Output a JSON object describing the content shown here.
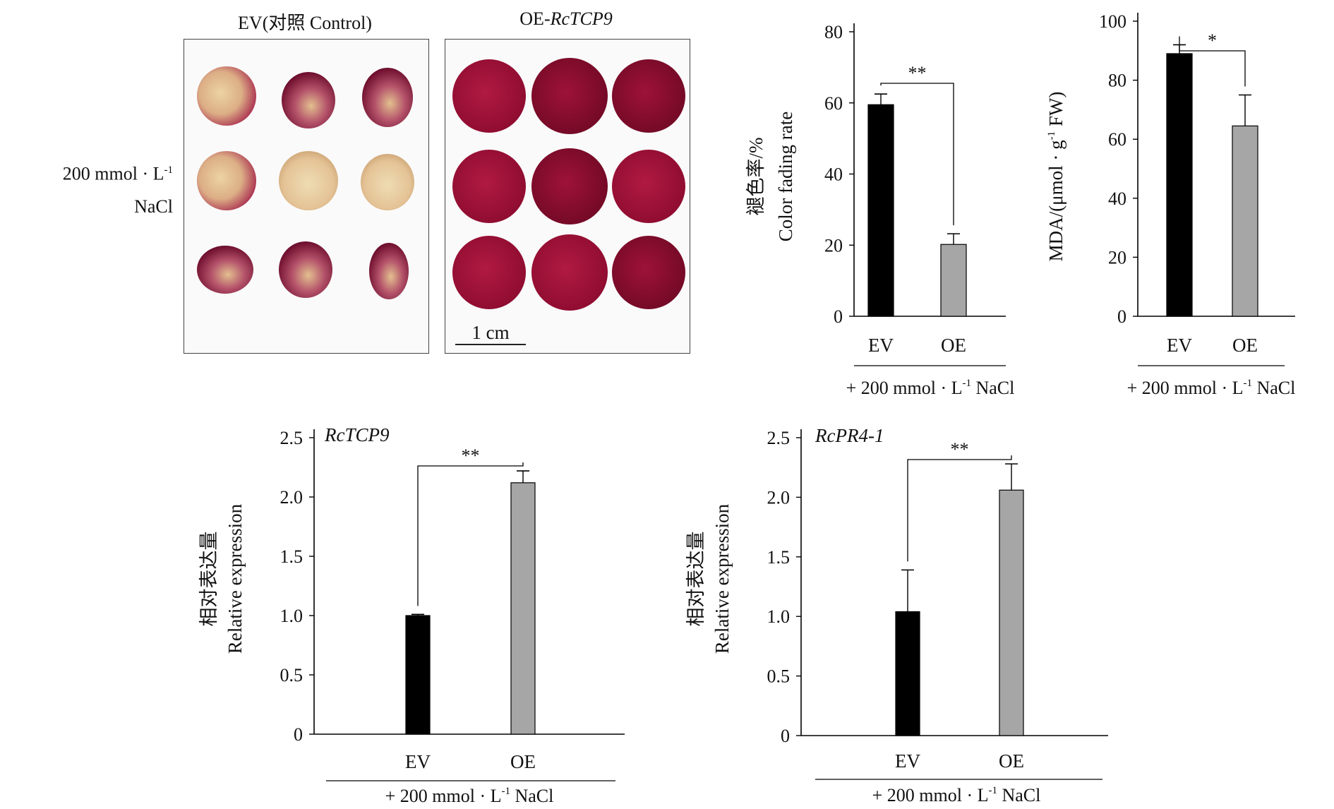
{
  "photo_panel": {
    "control_title_prefix": "EV(对照 Control)",
    "oe_title_prefix": "OE-",
    "oe_title_gene": "RcTCP9",
    "side_label_line1": "200 mmol · L",
    "side_label_sup": "-1",
    "side_label_line2": "NaCl",
    "scale_bar_label": "1 cm",
    "colors": {
      "petal_red": "#a30f35",
      "petal_faded": "#e6c79a",
      "petal_dark": "#7a0a2a"
    }
  },
  "chart_data": [
    {
      "type": "bar",
      "id": "fading",
      "categories": [
        "EV",
        "OE"
      ],
      "values": [
        59.5,
        20.2
      ],
      "errors": [
        3,
        3
      ],
      "colors": [
        "#000000",
        "#a6a6a6"
      ],
      "ylabel_cn": "褪色率/%",
      "ylabel_en": "Color fading rate",
      "ylim": [
        0,
        80
      ],
      "yticks": [
        "0",
        "20",
        "40",
        "60",
        "80"
      ],
      "significance": "**",
      "treatment_prefix": "+ 200 mmol · L",
      "treatment_sup": "-1",
      "treatment_suffix": " NaCl"
    },
    {
      "type": "bar",
      "id": "mda",
      "categories": [
        "EV",
        "OE"
      ],
      "values": [
        89,
        64.5
      ],
      "errors": [
        3,
        10.5
      ],
      "colors": [
        "#000000",
        "#a6a6a6"
      ],
      "ylabel_prefix": "MDA/(μmol · g",
      "ylabel_sup": "-1",
      "ylabel_suffix": " FW)",
      "ylim": [
        0,
        100
      ],
      "yticks": [
        "0",
        "20",
        "40",
        "60",
        "80",
        "100"
      ],
      "significance": "*",
      "treatment_prefix": "+ 200 mmol · L",
      "treatment_sup": "-1",
      "treatment_suffix": " NaCl"
    },
    {
      "type": "bar",
      "id": "rctcp9",
      "categories": [
        "EV",
        "OE"
      ],
      "values": [
        1.0,
        2.12
      ],
      "errors": [
        0.01,
        0.1
      ],
      "colors": [
        "#000000",
        "#a6a6a6"
      ],
      "gene_label": "RcTCP9",
      "ylabel_cn": "相对表达量",
      "ylabel_en": "Relative expression",
      "ylim": [
        0,
        2.5
      ],
      "yticks": [
        "0",
        "0.5",
        "1.0",
        "1.5",
        "2.0",
        "2.5"
      ],
      "significance": "**",
      "treatment_prefix": "+ 200 mmol · L",
      "treatment_sup": "-1",
      "treatment_suffix": " NaCl"
    },
    {
      "type": "bar",
      "id": "rcpr4",
      "categories": [
        "EV",
        "OE"
      ],
      "values": [
        1.04,
        2.06
      ],
      "errors": [
        0.35,
        0.22
      ],
      "colors": [
        "#000000",
        "#a6a6a6"
      ],
      "gene_label": "RcPR4-1",
      "ylabel_cn": "相对表达量",
      "ylabel_en": "Relative expression",
      "ylim": [
        0,
        2.5
      ],
      "yticks": [
        "0",
        "0.5",
        "1.0",
        "1.5",
        "2.0",
        "2.5"
      ],
      "significance": "**",
      "treatment_prefix": "+ 200 mmol · L",
      "treatment_sup": "-1",
      "treatment_suffix": " NaCl"
    }
  ]
}
